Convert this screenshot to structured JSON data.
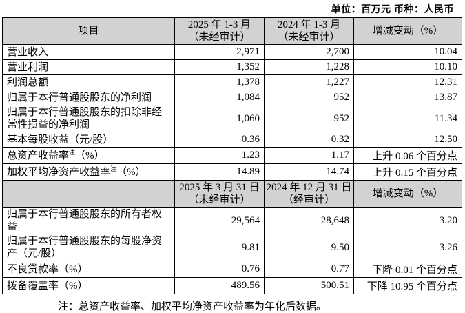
{
  "unit_note": "单位：百万元 币种：人民币",
  "colors": {
    "header_bg": "#d2d2d2",
    "border": "#000000",
    "text": "#000000",
    "page_bg": "#ffffff"
  },
  "table": {
    "sections": [
      {
        "header": {
          "col0": "项目",
          "col1": {
            "line1": "2025 年 1-3 月",
            "line2": "（未经审计）"
          },
          "col2": {
            "line1": "2024 年 1-3 月",
            "line2": "（未经审计）"
          },
          "col3": "增减变动（%）"
        },
        "rows": [
          {
            "label": "营业收入",
            "v1": "2,971",
            "v2": "2,700",
            "change": "10.04"
          },
          {
            "label": "营业利润",
            "v1": "1,352",
            "v2": "1,228",
            "change": "10.10"
          },
          {
            "label": "利润总额",
            "v1": "1,378",
            "v2": "1,227",
            "change": "12.31"
          },
          {
            "label": "归属于本行普通股股东的净利润",
            "v1": "1,084",
            "v2": "952",
            "change": "13.87"
          },
          {
            "label": "归属于本行普通股股东的扣除非经常性损益的净利润",
            "v1": "1,060",
            "v2": "952",
            "change": "11.34"
          },
          {
            "label": "基本每股收益（元/股）",
            "v1": "0.36",
            "v2": "0.32",
            "change": "12.50"
          },
          {
            "label": "总资产收益率",
            "sup": "注",
            "label_suffix": "（%）",
            "v1": "1.23",
            "v2": "1.17",
            "change": "上升 0.06 个百分点"
          },
          {
            "label": "加权平均净资产收益率",
            "sup": "注",
            "label_suffix": "（%）",
            "v1": "14.89",
            "v2": "14.74",
            "change": "上升 0.15 个百分点"
          }
        ]
      },
      {
        "header": {
          "col0": "",
          "col1": {
            "line1": "2025 年 3 月 31 日",
            "line2": "（未经审计）"
          },
          "col2": {
            "line1": "2024 年 12 月 31 日",
            "line2": "（经审计）"
          },
          "col3": "增减变动（%）"
        },
        "rows": [
          {
            "label": "归属于本行普通股股东的所有者权益",
            "v1": "29,564",
            "v2": "28,648",
            "change": "3.20"
          },
          {
            "label": "归属于本行普通股股东的每股净资产（元/股）",
            "v1": "9.81",
            "v2": "9.50",
            "change": "3.26"
          },
          {
            "label": "不良贷款率（%）",
            "v1": "0.76",
            "v2": "0.77",
            "change": "下降 0.01 个百分点"
          },
          {
            "label": "拨备覆盖率（%）",
            "v1": "489.56",
            "v2": "500.51",
            "change": "下降 10.95 个百分点"
          }
        ]
      }
    ]
  },
  "footnote": "注：总资产收益率、加权平均净资产收益率为年化后数据。"
}
